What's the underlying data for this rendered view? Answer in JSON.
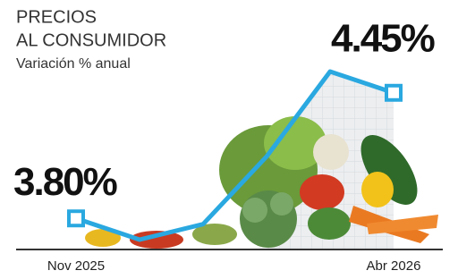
{
  "chart_data": {
    "type": "line",
    "title": [
      "PRECIOS",
      "AL CONSUMIDOR"
    ],
    "subtitle": "Variación % anual",
    "categories": [
      "Nov 2025",
      null,
      null,
      null,
      null,
      "Abr 2026"
    ],
    "values": [
      3.8,
      3.69,
      3.77,
      4.12,
      4.56,
      4.45
    ],
    "value_labels": [
      "3.80%",
      null,
      null,
      null,
      null,
      "4.45%"
    ],
    "color": "#2aa8e0"
  }
}
